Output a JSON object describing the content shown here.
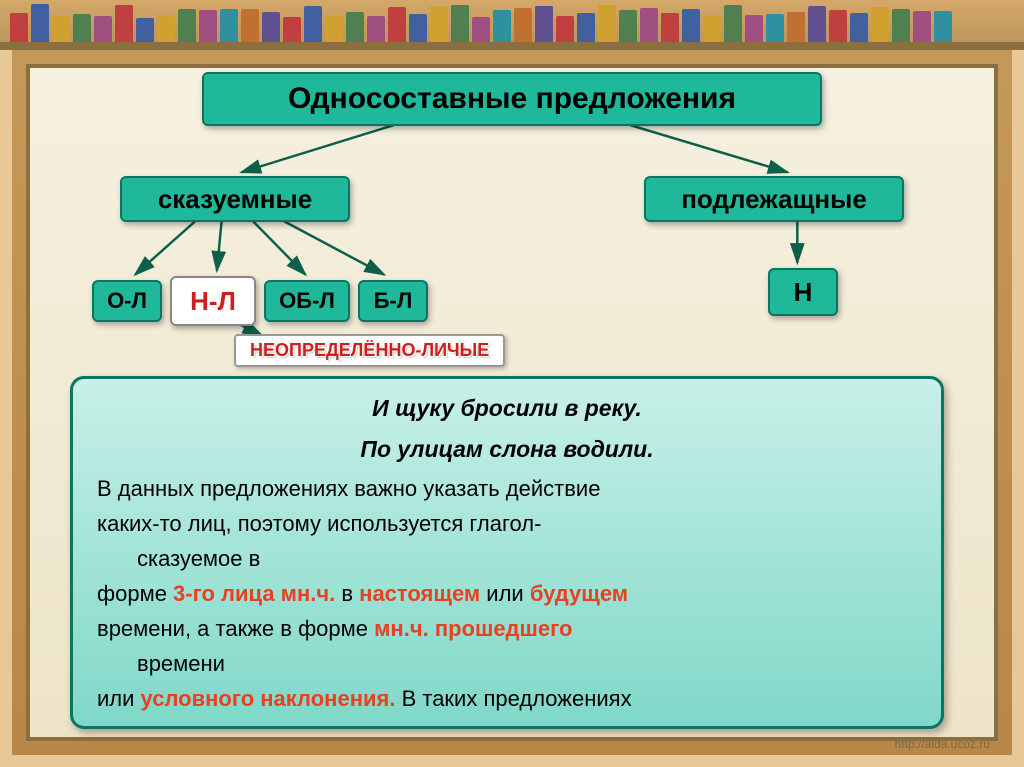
{
  "title": "Односоставные предложения",
  "level2": {
    "left": "сказуемные",
    "right": "подлежащные"
  },
  "leaves": {
    "ol": "О-Л",
    "nl": "Н-Л",
    "obl": "ОБ-Л",
    "bl": "Б-Л",
    "n": "Н"
  },
  "label": "НЕОПРЕДЕЛЁННО-ЛИЧЫЕ",
  "example1": "И щуку бросили в реку.",
  "example2": "По улицам слона водили.",
  "para_lines": {
    "l1": "В данных предложениях важно указать действие",
    "l2": "каких-то лиц, поэтому используется глагол-",
    "l3pre": "сказуемое в",
    "l4a": "форме ",
    "l4h1": "3-го лица мн.ч.",
    "l4b": " в ",
    "l4h2": "настоящем",
    "l4c": " или ",
    "l4h3": "будущем",
    "l5a": "времени, а также в форме ",
    "l5h": "мн.ч. прошедшего",
    "l6pre": "времени",
    "l7a": "или ",
    "l7h": "условного наклонения.",
    "l7b": " В таких предложениях"
  },
  "url": "http://aida.ucoz.ru",
  "colors": {
    "box_bg": "#1fb89a",
    "box_border": "#0a7560",
    "highlight": "#e84020",
    "arrow": "#0a6048"
  },
  "books": [
    "#c04040",
    "#4060a0",
    "#d0a030",
    "#508050",
    "#a05080",
    "#c04040",
    "#4060a0",
    "#d0a030",
    "#508050",
    "#a05080",
    "#3090a0",
    "#c07030",
    "#605090",
    "#c04040",
    "#4060a0",
    "#d0a030",
    "#508050",
    "#a05080",
    "#c04040",
    "#4060a0",
    "#d0a030",
    "#508050",
    "#a05080",
    "#3090a0",
    "#c07030",
    "#605090",
    "#c04040",
    "#4060a0",
    "#d0a030",
    "#508050",
    "#a05080",
    "#c04040",
    "#4060a0",
    "#d0a030",
    "#508050",
    "#a05080",
    "#3090a0",
    "#c07030",
    "#605090",
    "#c04040",
    "#4060a0",
    "#d0a030",
    "#508050",
    "#a05080",
    "#3090a0"
  ]
}
